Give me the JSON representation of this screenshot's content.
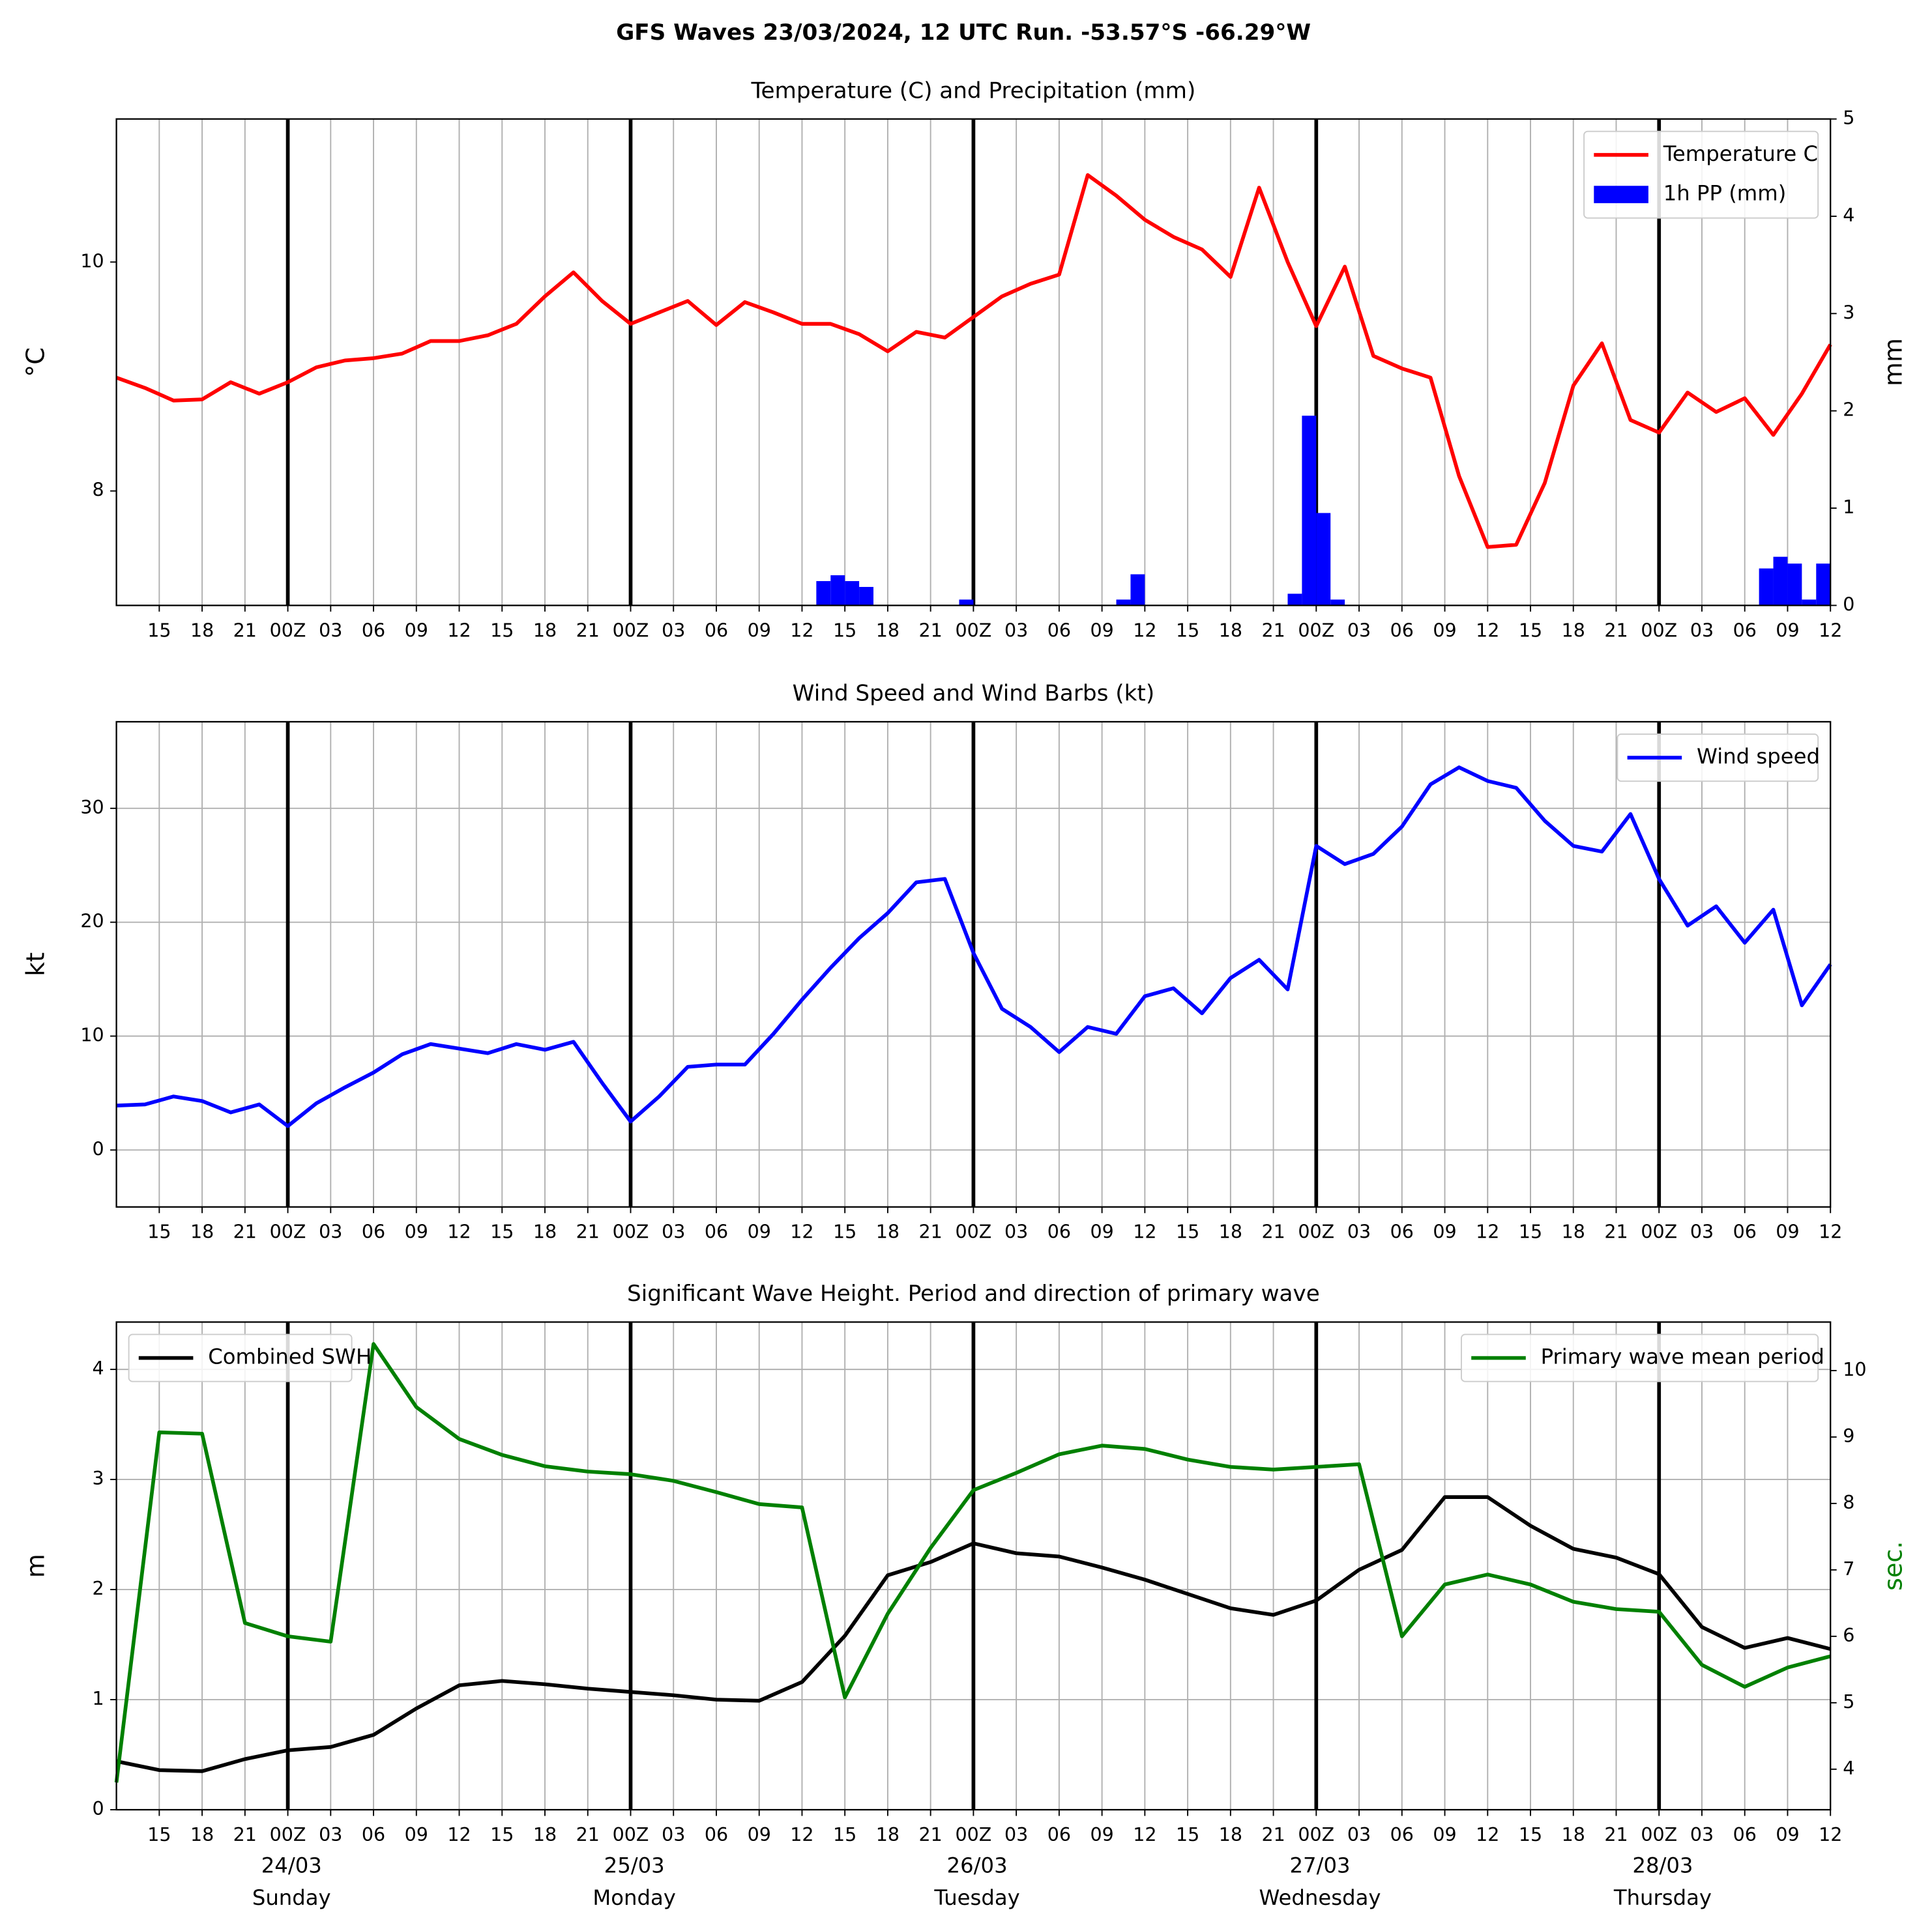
{
  "title": "GFS Waves 23/03/2024, 12 UTC Run. -53.57°S -66.29°W",
  "xlim": [
    0,
    120
  ],
  "xticks": [
    {
      "value": 3,
      "label": "15"
    },
    {
      "value": 6,
      "label": "18"
    },
    {
      "value": 9,
      "label": "21"
    },
    {
      "value": 12,
      "label": "00Z"
    },
    {
      "value": 15,
      "label": "03"
    },
    {
      "value": 18,
      "label": "06"
    },
    {
      "value": 21,
      "label": "09"
    },
    {
      "value": 24,
      "label": "12"
    },
    {
      "value": 27,
      "label": "15"
    },
    {
      "value": 30,
      "label": "18"
    },
    {
      "value": 33,
      "label": "21"
    },
    {
      "value": 36,
      "label": "00Z"
    },
    {
      "value": 39,
      "label": "03"
    },
    {
      "value": 42,
      "label": "06"
    },
    {
      "value": 45,
      "label": "09"
    },
    {
      "value": 48,
      "label": "12"
    },
    {
      "value": 51,
      "label": "15"
    },
    {
      "value": 54,
      "label": "18"
    },
    {
      "value": 57,
      "label": "21"
    },
    {
      "value": 60,
      "label": "00Z"
    },
    {
      "value": 63,
      "label": "03"
    },
    {
      "value": 66,
      "label": "06"
    },
    {
      "value": 69,
      "label": "09"
    },
    {
      "value": 72,
      "label": "12"
    },
    {
      "value": 75,
      "label": "15"
    },
    {
      "value": 78,
      "label": "18"
    },
    {
      "value": 81,
      "label": "21"
    },
    {
      "value": 84,
      "label": "00Z"
    },
    {
      "value": 87,
      "label": "03"
    },
    {
      "value": 90,
      "label": "06"
    },
    {
      "value": 93,
      "label": "09"
    },
    {
      "value": 96,
      "label": "12"
    },
    {
      "value": 99,
      "label": "15"
    },
    {
      "value": 102,
      "label": "18"
    },
    {
      "value": 105,
      "label": "21"
    },
    {
      "value": 108,
      "label": "00Z"
    },
    {
      "value": 111,
      "label": "03"
    },
    {
      "value": 114,
      "label": "06"
    },
    {
      "value": 117,
      "label": "09"
    },
    {
      "value": 120,
      "label": "12"
    }
  ],
  "days": [
    {
      "value": 12,
      "label": "24/03",
      "weekday": "Sunday"
    },
    {
      "value": 36,
      "label": "25/03",
      "weekday": "Monday"
    },
    {
      "value": 60,
      "label": "26/03",
      "weekday": "Tuesday"
    },
    {
      "value": 84,
      "label": "27/03",
      "weekday": "Wednesday"
    },
    {
      "value": 108,
      "label": "28/03",
      "weekday": "Thursday"
    }
  ],
  "chart_data": [
    {
      "type": "line",
      "title": "Temperature (C) and Precipitation (mm)",
      "ylabel": "°C",
      "y2label": "mm",
      "grid": "x",
      "ylim": [
        7.0,
        11.25
      ],
      "yticks": [
        8,
        10
      ],
      "y2lim": [
        0,
        5
      ],
      "y2ticks": [
        0,
        1,
        2,
        3,
        4,
        5
      ],
      "series": [
        {
          "name": "Temperature C",
          "type": "line",
          "color": "#ff0000",
          "legend": "upper right",
          "x": [
            0,
            2,
            4,
            6,
            8,
            10,
            12,
            14,
            16,
            18,
            20,
            22,
            24,
            26,
            28,
            30,
            32,
            34,
            36,
            38,
            40,
            42,
            44,
            46,
            48,
            50,
            52,
            54,
            56,
            58,
            60,
            62,
            64,
            66,
            68,
            70,
            72,
            74,
            76,
            78,
            80,
            82,
            84,
            86,
            88,
            90,
            92,
            94,
            96,
            98,
            100,
            102,
            104,
            106,
            108,
            110,
            112,
            114,
            116,
            118,
            120
          ],
          "values": [
            8.99,
            8.9,
            8.79,
            8.8,
            8.95,
            8.85,
            8.95,
            9.08,
            9.14,
            9.16,
            9.2,
            9.31,
            9.31,
            9.36,
            9.46,
            9.7,
            9.91,
            9.66,
            9.46,
            9.56,
            9.66,
            9.45,
            9.65,
            9.56,
            9.46,
            9.46,
            9.37,
            9.22,
            9.39,
            9.34,
            9.52,
            9.7,
            9.81,
            9.89,
            10.76,
            10.58,
            10.37,
            10.22,
            10.11,
            9.87,
            10.65,
            10.0,
            9.44,
            9.96,
            9.18,
            9.07,
            8.99,
            8.13,
            7.51,
            7.53,
            8.07,
            8.92,
            9.29,
            8.62,
            8.51,
            8.86,
            8.69,
            8.81,
            8.49,
            8.85,
            9.28
          ]
        },
        {
          "name": "1h PP (mm)",
          "type": "bar",
          "axis": "y2",
          "color": "#0000ff",
          "legend": "upper right",
          "x": [
            49,
            50,
            51,
            52,
            59,
            70,
            71,
            82,
            83,
            84,
            85,
            115,
            116,
            117,
            118,
            119
          ],
          "values": [
            0.25,
            0.31,
            0.25,
            0.19,
            0.06,
            0.06,
            0.32,
            0.12,
            1.95,
            0.95,
            0.06,
            0.38,
            0.5,
            0.43,
            0.06,
            0.43
          ]
        }
      ]
    },
    {
      "type": "line",
      "title": "Wind Speed and Wind Barbs (kt)",
      "ylabel": "kt",
      "grid": "both",
      "ylim": [
        -5,
        37.6
      ],
      "yticks": [
        0,
        10,
        20,
        30
      ],
      "series": [
        {
          "name": "Wind speed",
          "type": "line",
          "color": "#0000ff",
          "legend": "upper right",
          "x": [
            0,
            2,
            4,
            6,
            8,
            10,
            12,
            14,
            16,
            18,
            20,
            22,
            24,
            26,
            28,
            30,
            32,
            34,
            36,
            38,
            40,
            42,
            44,
            46,
            48,
            50,
            52,
            54,
            56,
            58,
            60,
            62,
            64,
            66,
            68,
            70,
            72,
            74,
            76,
            78,
            80,
            82,
            84,
            86,
            88,
            90,
            92,
            94,
            96,
            98,
            100,
            102,
            104,
            106,
            108,
            110,
            112,
            114,
            116,
            118,
            120
          ],
          "values": [
            3.9,
            4.0,
            4.7,
            4.3,
            3.3,
            4.0,
            2.1,
            4.1,
            5.5,
            6.8,
            8.4,
            9.3,
            8.9,
            8.5,
            9.3,
            8.8,
            9.5,
            5.9,
            2.5,
            4.7,
            7.3,
            7.5,
            7.5,
            10.2,
            13.2,
            16.0,
            18.6,
            20.8,
            23.5,
            23.8,
            17.3,
            12.4,
            10.8,
            8.6,
            10.8,
            10.2,
            13.5,
            14.2,
            12.0,
            15.1,
            16.7,
            14.1,
            26.7,
            25.1,
            26.0,
            28.4,
            32.1,
            33.6,
            32.4,
            31.8,
            28.9,
            26.7,
            26.2,
            29.5,
            23.8,
            19.7,
            21.4,
            18.2,
            21.1,
            12.7,
            16.3
          ]
        }
      ]
    },
    {
      "type": "line",
      "title": "Significant Wave Height. Period and direction of primary wave",
      "ylabel": "m",
      "y2label": "sec.",
      "y2label_color": "#008000",
      "grid": "both",
      "ylim": [
        0,
        4.43
      ],
      "yticks": [
        0,
        1,
        2,
        3,
        4
      ],
      "y2lim": [
        3.39,
        10.73
      ],
      "y2ticks": [
        4,
        5,
        6,
        7,
        8,
        9,
        10
      ],
      "series": [
        {
          "name": "Combined SWH",
          "type": "line",
          "color": "#000000",
          "legend": "upper left",
          "x": [
            0,
            3,
            6,
            9,
            12,
            15,
            18,
            21,
            24,
            27,
            30,
            33,
            36,
            39,
            42,
            45,
            48,
            51,
            54,
            57,
            60,
            63,
            66,
            69,
            72,
            75,
            78,
            81,
            84,
            87,
            90,
            93,
            96,
            99,
            102,
            105,
            108,
            111,
            114,
            117,
            120
          ],
          "values": [
            0.44,
            0.36,
            0.35,
            0.46,
            0.54,
            0.57,
            0.68,
            0.92,
            1.13,
            1.17,
            1.14,
            1.1,
            1.07,
            1.04,
            1.0,
            0.99,
            1.16,
            1.58,
            2.13,
            2.25,
            2.42,
            2.33,
            2.3,
            2.2,
            2.09,
            1.96,
            1.83,
            1.77,
            1.9,
            2.18,
            2.36,
            2.84,
            2.84,
            2.58,
            2.37,
            2.29,
            2.14,
            1.66,
            1.47,
            1.56,
            1.46
          ]
        },
        {
          "name": "Primary wave mean period",
          "type": "line",
          "axis": "y2",
          "color": "#008000",
          "legend": "upper right",
          "x": [
            0,
            3,
            6,
            9,
            12,
            15,
            18,
            21,
            24,
            27,
            30,
            33,
            36,
            39,
            42,
            45,
            48,
            51,
            54,
            57,
            60,
            63,
            66,
            69,
            72,
            75,
            78,
            81,
            84,
            87,
            90,
            93,
            96,
            99,
            102,
            105,
            108,
            111,
            114,
            117,
            120
          ],
          "values": [
            3.8,
            9.07,
            9.05,
            6.2,
            6.0,
            5.92,
            10.4,
            9.45,
            8.97,
            8.73,
            8.56,
            8.48,
            8.44,
            8.34,
            8.17,
            7.99,
            7.94,
            5.08,
            6.34,
            7.33,
            8.2,
            8.46,
            8.74,
            8.87,
            8.82,
            8.66,
            8.55,
            8.51,
            8.55,
            8.59,
            6.0,
            6.78,
            6.93,
            6.78,
            6.52,
            6.41,
            6.37,
            5.57,
            5.24,
            5.53,
            5.7
          ]
        }
      ]
    }
  ]
}
